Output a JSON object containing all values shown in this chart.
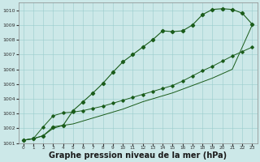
{
  "bg_color": "#cce8e8",
  "grid_color": "#99cccc",
  "line_color": "#1a5c1a",
  "xlabel": "Graphe pression niveau de la mer (hPa)",
  "xlabel_fontsize": 7,
  "xlim": [
    -0.5,
    23.5
  ],
  "ylim": [
    1001,
    1010.5
  ],
  "yticks": [
    1001,
    1002,
    1003,
    1004,
    1005,
    1006,
    1007,
    1008,
    1009,
    1010
  ],
  "xticks": [
    0,
    1,
    2,
    3,
    4,
    5,
    6,
    7,
    8,
    9,
    10,
    11,
    12,
    13,
    14,
    15,
    16,
    17,
    18,
    19,
    20,
    21,
    22,
    23
  ],
  "series1_x": [
    0,
    1,
    2,
    3,
    4,
    5,
    6,
    7,
    8,
    9,
    10,
    11,
    12,
    13,
    14,
    15,
    16,
    17,
    18,
    19,
    20,
    21,
    22,
    23
  ],
  "series1_y": [
    1001.2,
    1001.3,
    1001.5,
    1002.1,
    1002.2,
    1003.2,
    1003.8,
    1004.4,
    1005.05,
    1005.8,
    1006.5,
    1007.0,
    1007.5,
    1008.0,
    1008.6,
    1008.55,
    1008.6,
    1009.0,
    1009.7,
    1010.05,
    1010.1,
    1010.05,
    1009.8,
    1009.05
  ],
  "series2_x": [
    0,
    1,
    2,
    3,
    4,
    5,
    6,
    7,
    8,
    9,
    10,
    11,
    12,
    13,
    14,
    15,
    16,
    17,
    18,
    19,
    20,
    21,
    22,
    23
  ],
  "series2_y": [
    1001.2,
    1001.3,
    1001.5,
    1002.0,
    1002.2,
    1002.3,
    1002.5,
    1002.7,
    1002.9,
    1003.1,
    1003.3,
    1003.55,
    1003.8,
    1004.0,
    1004.2,
    1004.4,
    1004.65,
    1004.9,
    1005.15,
    1005.4,
    1005.7,
    1006.0,
    1007.5,
    1009.0
  ],
  "series3_x": [
    0,
    1,
    2,
    3,
    4,
    5,
    6,
    7,
    8,
    9,
    10,
    11,
    12,
    13,
    14,
    15,
    16,
    17,
    18,
    19,
    20,
    21,
    22,
    23
  ],
  "series3_y": [
    1001.2,
    1001.3,
    1002.1,
    1002.85,
    1003.05,
    1003.1,
    1003.2,
    1003.35,
    1003.5,
    1003.7,
    1003.9,
    1004.1,
    1004.3,
    1004.5,
    1004.7,
    1004.9,
    1005.2,
    1005.55,
    1005.9,
    1006.2,
    1006.55,
    1006.9,
    1007.2,
    1007.5
  ]
}
